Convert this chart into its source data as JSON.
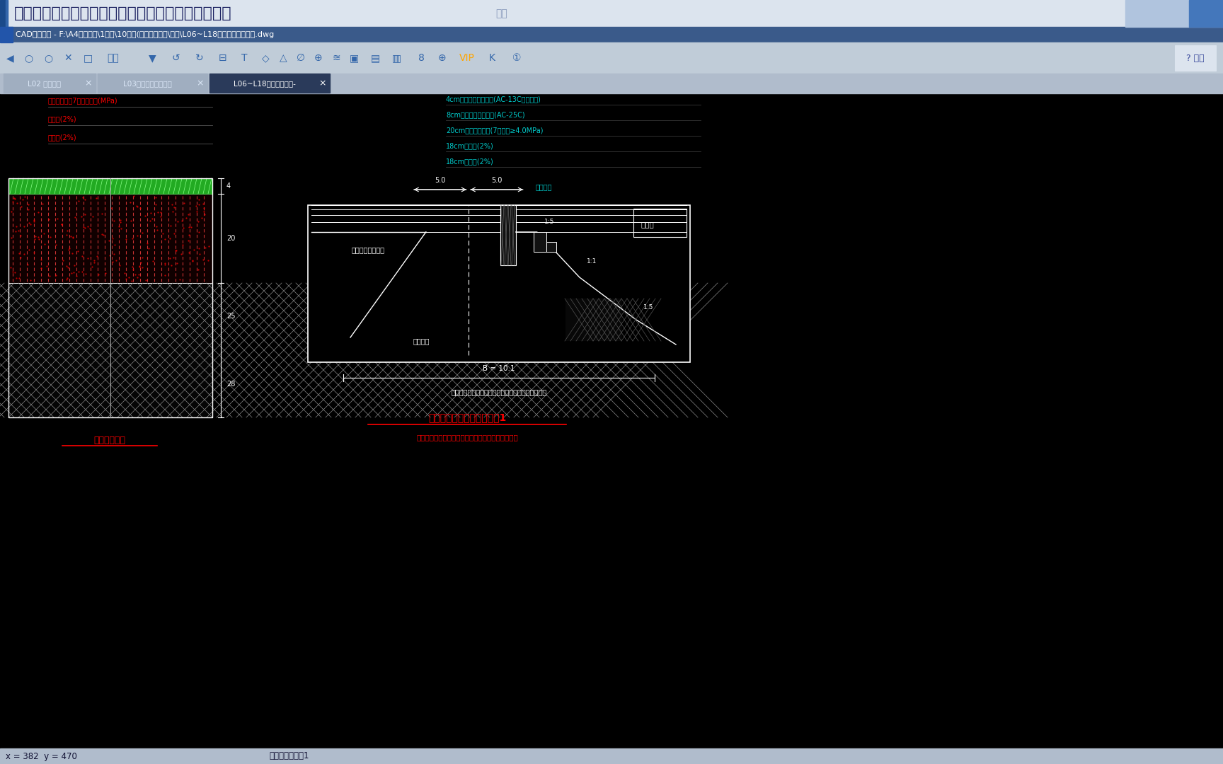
{
  "bg_color": "#000000",
  "ui_top_bg": "#c8d0d8",
  "title_bar_text": "道路工程及通用项目定额讲解、施工工序介绍及识图",
  "title_bar_subtitle": "课堂",
  "file_path": "CAD快速看图 - F:\\A4培训相关\\1面接\\10道路(电场东路以东\\道路\\L06~L18路面结构图等杂图.dwg",
  "tab1": "L02 纵断面图",
  "tab2": "L03道路横断面方案图",
  "tab3": "L06~L18路面结构图等-",
  "status_bar": "x = 382  y = 470",
  "status_bar2": "当前标注比例：1",
  "legend_cyan_texts": [
    "4cm细粒式沥青混凝土(AC-13C，粘层油)",
    "8cm粗粒式沥青混凝土(AC-25C)",
    "20cm水泥稳定碎石(7天强度≥4.0MPa)",
    "18cm石灰土(2%)",
    "18cm石灰土(2%)"
  ],
  "legend_red_texts": [
    "水泥稳定碎石7天龄期强度(MPa)",
    "石灰土(2%)",
    "石灰土(2%)"
  ],
  "caption1": "道路路面结构",
  "caption2": "新建道路标准路面结构层图1",
  "caption3": "图中注明尺寸单位为毫米，其余为厘米或未注明单位",
  "inner_label1": "道路横断面土方图",
  "inner_label2": "路基范围",
  "dim_B": "B = 10.1",
  "crossfall": "双坡排水",
  "note_below": "道路路基标准横断面填方路基范围及挡墙位置示意图",
  "slope_15": "1:5",
  "slope_11": "1:1",
  "slope_15b": "1:5"
}
